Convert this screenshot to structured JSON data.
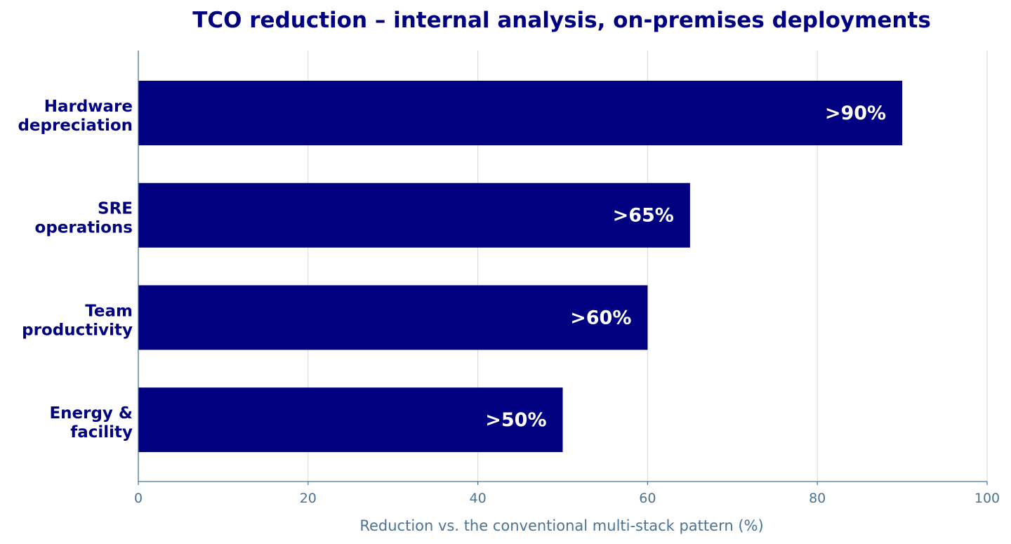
{
  "chart_data": {
    "type": "bar",
    "orientation": "horizontal",
    "title": "TCO reduction – internal analysis, on-premises deployments",
    "xlabel": "Reduction vs. the conventional multi-stack pattern (%)",
    "ylabel": "",
    "categories": [
      [
        "Hardware",
        "depreciation"
      ],
      [
        "SRE",
        "operations"
      ],
      [
        "Team",
        "productivity"
      ],
      [
        "Energy &",
        "facility"
      ]
    ],
    "values": [
      90,
      65,
      60,
      50
    ],
    "data_labels": [
      ">90%",
      ">65%",
      ">60%",
      ">50%"
    ],
    "xlim": [
      0,
      100
    ],
    "xticks": [
      0,
      20,
      40,
      60,
      80,
      100
    ],
    "grid": "vertical",
    "legend": "none",
    "colors": {
      "bar": "#000080",
      "title": "#000080",
      "category_label": "#000080",
      "data_label": "#ffffff",
      "axis": "#4a7396",
      "tick_label": "#4a7396",
      "grid": "#d9d9d9"
    }
  }
}
